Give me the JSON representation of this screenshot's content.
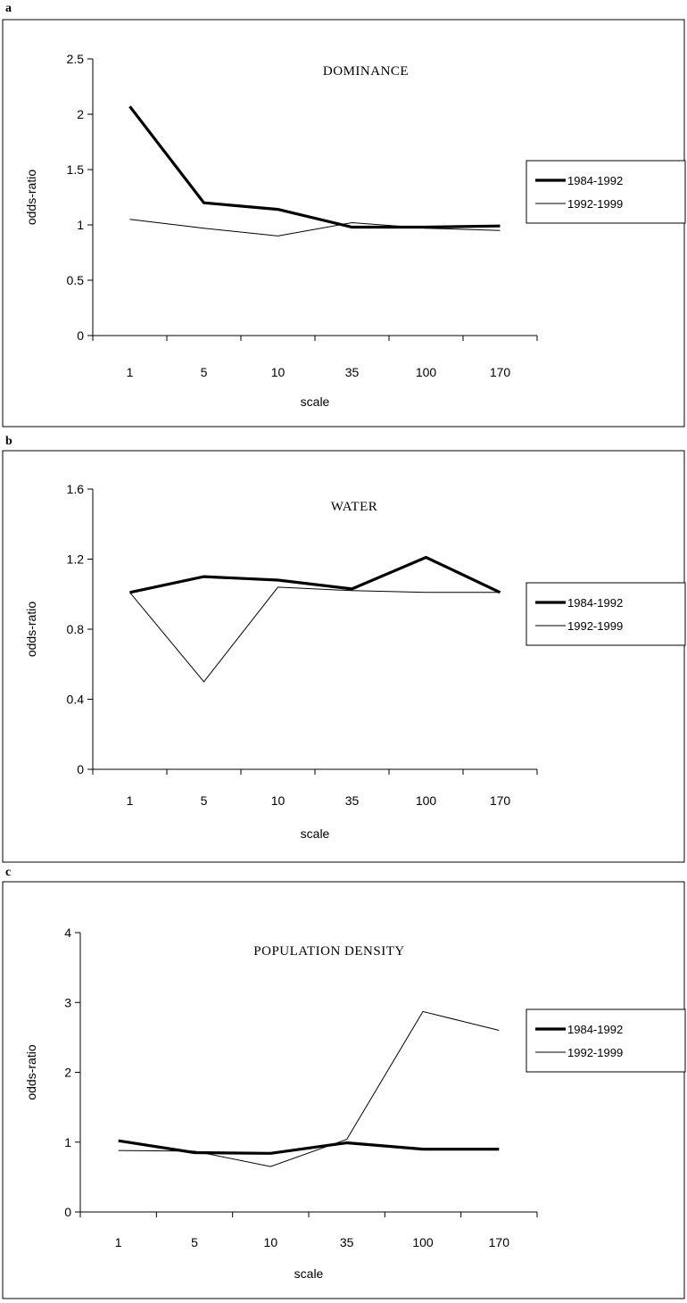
{
  "chart_data": [
    {
      "panel_label": "a",
      "type": "line",
      "title": "DOMINANCE",
      "xlabel": "scale",
      "ylabel": "odds-ratio",
      "categories": [
        "1",
        "5",
        "10",
        "35",
        "100",
        "170"
      ],
      "ylim": [
        0,
        2.5
      ],
      "yticks": [
        "0",
        "0.5",
        "1",
        "1.5",
        "2",
        "2.5"
      ],
      "series": [
        {
          "name": "1984-1992",
          "values": [
            2.07,
            1.2,
            1.14,
            0.98,
            0.98,
            0.99
          ]
        },
        {
          "name": "1992-1999",
          "values": [
            1.05,
            0.97,
            0.9,
            1.02,
            0.97,
            0.95
          ]
        }
      ],
      "legend": "right",
      "grid": false
    },
    {
      "panel_label": "b",
      "type": "line",
      "title": "WATER",
      "xlabel": "scale",
      "ylabel": "odds-ratio",
      "categories": [
        "1",
        "5",
        "10",
        "35",
        "100",
        "170"
      ],
      "ylim": [
        0,
        1.6
      ],
      "yticks": [
        "0",
        "0.4",
        "0.8",
        "1.2",
        "1.6"
      ],
      "series": [
        {
          "name": "1984-1992",
          "values": [
            1.01,
            1.1,
            1.08,
            1.03,
            1.21,
            1.01
          ]
        },
        {
          "name": "1992-1999",
          "values": [
            1.01,
            0.5,
            1.04,
            1.02,
            1.01,
            1.01
          ]
        }
      ],
      "legend": "right",
      "grid": false
    },
    {
      "panel_label": "c",
      "type": "line",
      "title": "POPULATION DENSITY",
      "xlabel": "scale",
      "ylabel": "odds-ratio",
      "categories": [
        "1",
        "5",
        "10",
        "35",
        "100",
        "170"
      ],
      "ylim": [
        0,
        4
      ],
      "yticks": [
        "0",
        "1",
        "2",
        "3",
        "4"
      ],
      "series": [
        {
          "name": "1984-1992",
          "values": [
            1.02,
            0.85,
            0.84,
            0.99,
            0.9,
            0.9
          ]
        },
        {
          "name": "1992-1999",
          "values": [
            0.88,
            0.87,
            0.65,
            1.04,
            2.87,
            2.6
          ]
        }
      ],
      "legend": "right",
      "grid": false
    }
  ],
  "styles": {
    "series_colors": [
      "#000000",
      "#000000"
    ],
    "frame_color": "#000000",
    "background": "#ffffff"
  }
}
